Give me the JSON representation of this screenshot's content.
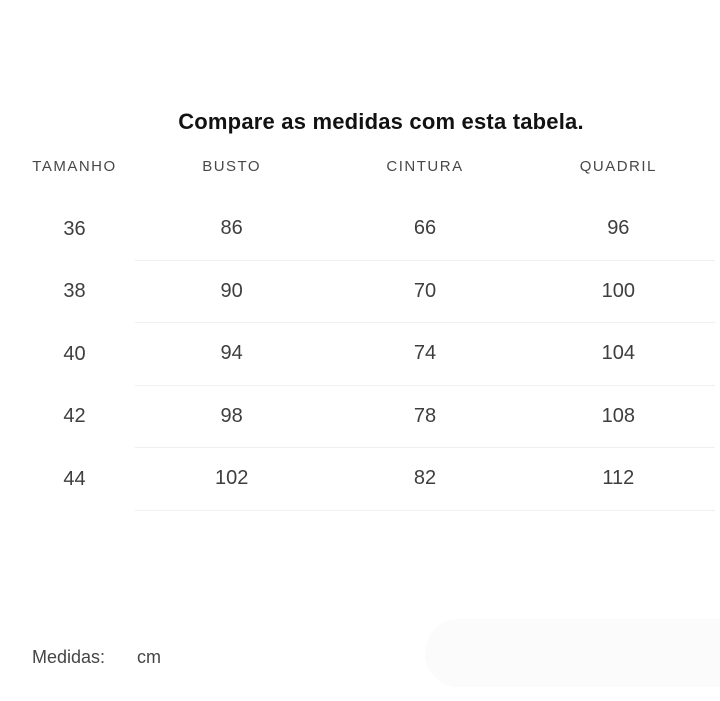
{
  "title": "Compare as medidas com esta tabela.",
  "size_chart": {
    "columns": [
      "TAMANHO",
      "BUSTO",
      "CINTURA",
      "QUADRIL"
    ],
    "rows": [
      [
        "36",
        "86",
        "66",
        "96"
      ],
      [
        "38",
        "90",
        "70",
        "100"
      ],
      [
        "40",
        "94",
        "74",
        "104"
      ],
      [
        "42",
        "98",
        "78",
        "108"
      ],
      [
        "44",
        "102",
        "82",
        "112"
      ]
    ]
  },
  "footer": {
    "label": "Medidas:",
    "unit": "cm"
  },
  "colors": {
    "title_text": "#121212",
    "header_text": "#484848",
    "cell_text": "#3e3e3e",
    "divider": "#f0f0f0",
    "corner_panel": "#fbfbfb",
    "background": "#ffffff"
  }
}
